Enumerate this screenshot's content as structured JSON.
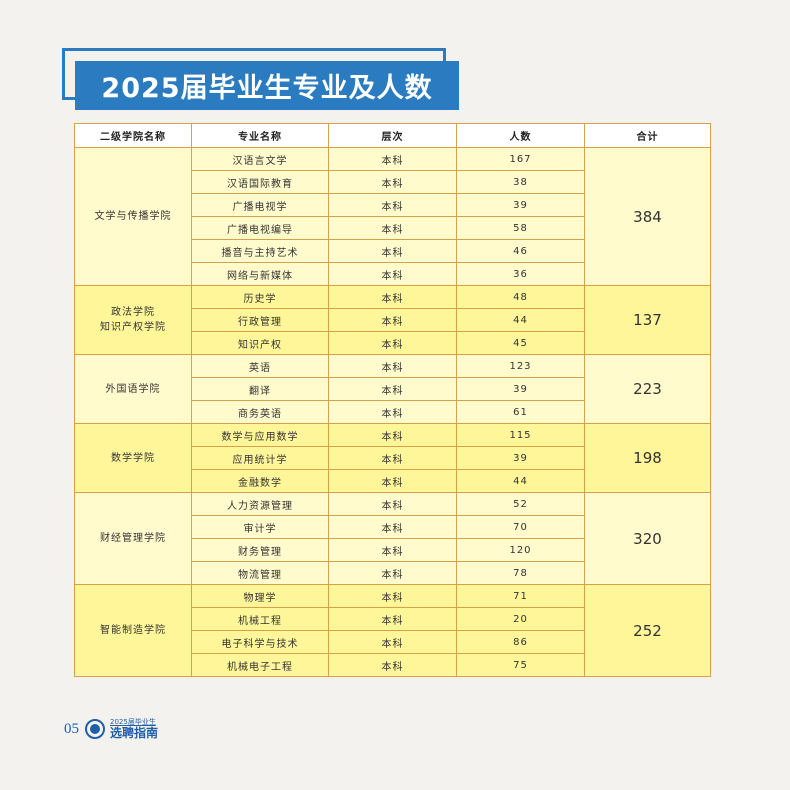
{
  "title": "2025届毕业生专业及人数",
  "table": {
    "headers": [
      "二级学院名称",
      "专业名称",
      "层次",
      "人数",
      "合计"
    ],
    "groups": [
      {
        "college": [
          "文学与传播学院"
        ],
        "total": "384",
        "rows": [
          [
            "汉语言文学",
            "本科",
            "167"
          ],
          [
            "汉语国际教育",
            "本科",
            "38"
          ],
          [
            "广播电视学",
            "本科",
            "39"
          ],
          [
            "广播电视编导",
            "本科",
            "58"
          ],
          [
            "播音与主持艺术",
            "本科",
            "46"
          ],
          [
            "网络与新媒体",
            "本科",
            "36"
          ]
        ]
      },
      {
        "college": [
          "政法学院",
          "知识产权学院"
        ],
        "total": "137",
        "rows": [
          [
            "历史学",
            "本科",
            "48"
          ],
          [
            "行政管理",
            "本科",
            "44"
          ],
          [
            "知识产权",
            "本科",
            "45"
          ]
        ]
      },
      {
        "college": [
          "外国语学院"
        ],
        "total": "223",
        "rows": [
          [
            "英语",
            "本科",
            "123"
          ],
          [
            "翻译",
            "本科",
            "39"
          ],
          [
            "商务英语",
            "本科",
            "61"
          ]
        ]
      },
      {
        "college": [
          "数学学院"
        ],
        "total": "198",
        "rows": [
          [
            "数学与应用数学",
            "本科",
            "115"
          ],
          [
            "应用统计学",
            "本科",
            "39"
          ],
          [
            "金融数学",
            "本科",
            "44"
          ]
        ]
      },
      {
        "college": [
          "财经管理学院"
        ],
        "total": "320",
        "rows": [
          [
            "人力资源管理",
            "本科",
            "52"
          ],
          [
            "审计学",
            "本科",
            "70"
          ],
          [
            "财务管理",
            "本科",
            "120"
          ],
          [
            "物流管理",
            "本科",
            "78"
          ]
        ]
      },
      {
        "college": [
          "智能制造学院"
        ],
        "total": "252",
        "rows": [
          [
            "物理学",
            "本科",
            "71"
          ],
          [
            "机械工程",
            "本科",
            "20"
          ],
          [
            "电子科学与技术",
            "本科",
            "86"
          ],
          [
            "机械电子工程",
            "本科",
            "75"
          ]
        ]
      }
    ]
  },
  "footer": {
    "page": "05",
    "brand_small": "2025届毕业生",
    "brand_big": "选聘指南",
    "logo_icon": "university-seal-icon"
  },
  "colors": {
    "accent": "#2a7bbf",
    "band_light": "#fffbcc",
    "band_dark": "#fff69a",
    "border": "#d9a04a"
  }
}
